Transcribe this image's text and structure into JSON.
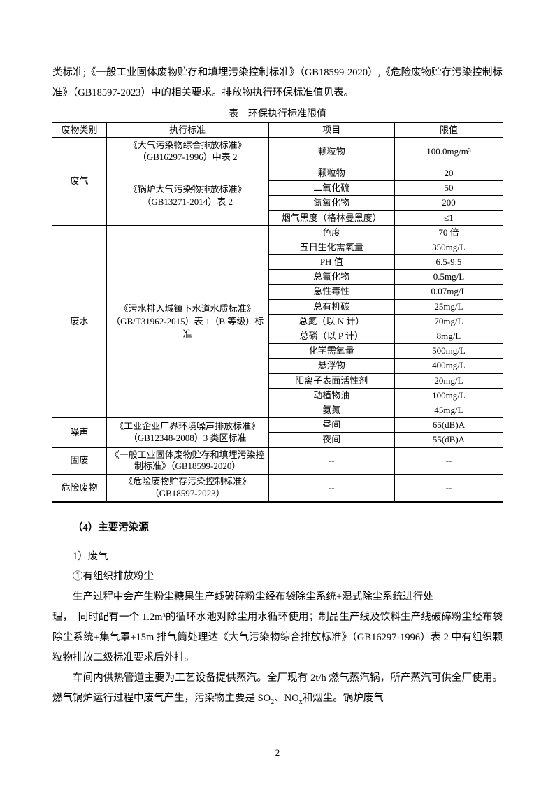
{
  "intro_para": "类标准;《一般工业固体废物贮存和填埋污染控制标准》（GB18599-2020）,《危险废物贮存污染控制标准》（GB18597-2023）中的相关要求。排放物执行环保标准值见表。",
  "table_caption": "表　环保执行标准限值",
  "headers": {
    "c1": "废物类别",
    "c2": "执行标准",
    "c3": "项目",
    "c4": "限值"
  },
  "feiqi": {
    "cat": "废气",
    "std1": "《大气污染物综合排放标准》（GB16297-1996）中表 2",
    "std2": "《锅炉大气污染物排放标准》（GB13271-2014）表 2",
    "r1": {
      "item": "颗粒物",
      "limit": "100.0mg/m³"
    },
    "r2": {
      "item": "颗粒物",
      "limit": "20"
    },
    "r3": {
      "item": "二氧化硫",
      "limit": "50"
    },
    "r4": {
      "item": "氮氧化物",
      "limit": "200"
    },
    "r5": {
      "item": "烟气黑度（格林曼黑度）",
      "limit": "≤1"
    }
  },
  "feishui": {
    "cat": "废水",
    "std": "《污水排入城镇下水道水质标准》（GB/T31962-2015）表 1（B 等级）标准",
    "r1": {
      "item": "色度",
      "limit": "70 倍"
    },
    "r2": {
      "item": "五日生化需氧量",
      "limit": "350mg/L"
    },
    "r3": {
      "item": "PH 值",
      "limit": "6.5-9.5"
    },
    "r4": {
      "item": "总氰化物",
      "limit": "0.5mg/L"
    },
    "r5": {
      "item": "急性毒性",
      "limit": "0.07mg/L"
    },
    "r6": {
      "item": "总有机碳",
      "limit": "25mg/L"
    },
    "r7": {
      "item": "总氮（以 N 计）",
      "limit": "70mg/L"
    },
    "r8": {
      "item": "总磷（以 P 计）",
      "limit": "8mg/L"
    },
    "r9": {
      "item": "化学需氧量",
      "limit": "500mg/L"
    },
    "r10": {
      "item": "悬浮物",
      "limit": "400mg/L"
    },
    "r11": {
      "item": "阳离子表面活性剂",
      "limit": "20mg/L"
    },
    "r12": {
      "item": "动植物油",
      "limit": "100mg/L"
    },
    "r13": {
      "item": "氨氮",
      "limit": "45mg/L"
    }
  },
  "zaosheng": {
    "cat": "噪声",
    "std": "《工业企业厂界环境噪声排放标准》（GB12348-2008）3 类区标准",
    "r1": {
      "item": "昼间",
      "limit": "65(dB)A"
    },
    "r2": {
      "item": "夜间",
      "limit": "55(dB)A"
    }
  },
  "gufei": {
    "cat": "固废",
    "std": "《一般工业固体废物贮存和填埋污染控制标准》（GB18599-2020）",
    "item": "--",
    "limit": "--"
  },
  "weixian": {
    "cat": "危险废物",
    "std": "《危险废物贮存污染控制标准》（GB18597-2023）",
    "item": "--",
    "limit": "--"
  },
  "section_heading": "（4）主要污染源",
  "sub1": "1）废气",
  "sub2": "①有组织排放粉尘",
  "para1a": "生产过程中会产生粉尘糖果生产线破碎粉尘经布袋除尘系统+湿式除尘系统进行处",
  "para1b": "理，　同时配有一个 1.2m³的循环水池对除尘用水循环使用；制品生产线及饮料生产线破碎粉尘经布袋除尘系统+集气罩+15m 排气筒处理达《大气污染物综合排放标准》（GB16297-1996）表 2 中有组织颗粒物排放二级标准要求后外排。",
  "para2_prefix": "车间内供热管道主要为工艺设备提供蒸汽。全厂现有 2t/h 燃气蒸汽锅，所产蒸汽可供全厂使用。燃气锅炉运行过程中废气产生，污染物主要是 SO",
  "para2_mid": "、NO",
  "para2_suffix": "和烟尘。锅炉废气",
  "page_num": "2"
}
